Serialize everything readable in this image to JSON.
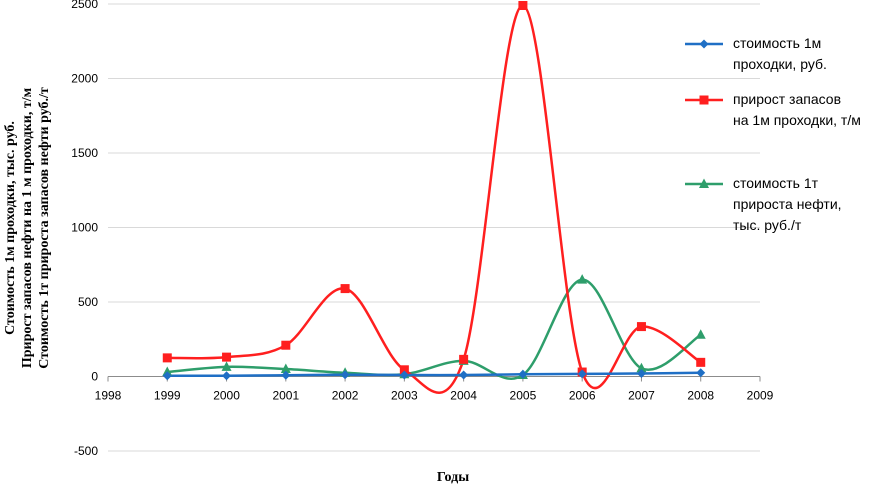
{
  "chart_data": {
    "type": "line",
    "title": "",
    "xlabel": "Годы",
    "ylabel_lines": [
      "Стоимость 1м проходки, тыс. руб.",
      "Прирост запасов нефти на 1 м проходки, т/м",
      "Стоимость 1т прироста запасов нефти руб./т"
    ],
    "xlim": [
      1998,
      2009
    ],
    "ylim": [
      -500,
      2500
    ],
    "x_ticks": [
      "1998",
      "1999",
      "2000",
      "2001",
      "2002",
      "2003",
      "2004",
      "2005",
      "2006",
      "2007",
      "2008",
      "2009"
    ],
    "y_ticks": [
      "-500",
      "0",
      "500",
      "1000",
      "1500",
      "2000",
      "2500"
    ],
    "grid": "horizontal",
    "legend_position": "right",
    "x": [
      1999,
      2000,
      2001,
      2002,
      2003,
      2004,
      2005,
      2006,
      2007,
      2008
    ],
    "series": [
      {
        "name_lines": [
          "стоимость 1м",
          "проходки, руб."
        ],
        "color": "#1f6fc5",
        "marker": "diamond",
        "values": [
          5,
          5,
          8,
          12,
          10,
          10,
          15,
          18,
          20,
          25
        ]
      },
      {
        "name_lines": [
          "прирост запасов",
          "на 1м проходки, т/м"
        ],
        "color": "#ff1f1f",
        "marker": "square",
        "values": [
          125,
          130,
          210,
          590,
          45,
          115,
          2490,
          30,
          335,
          95
        ]
      },
      {
        "name_lines": [
          "стоимость 1т",
          "прироста нефти,",
          "тыс. руб./т"
        ],
        "color": "#2e9e6b",
        "marker": "triangle",
        "values": [
          30,
          65,
          50,
          25,
          15,
          105,
          10,
          650,
          55,
          280
        ]
      }
    ]
  }
}
